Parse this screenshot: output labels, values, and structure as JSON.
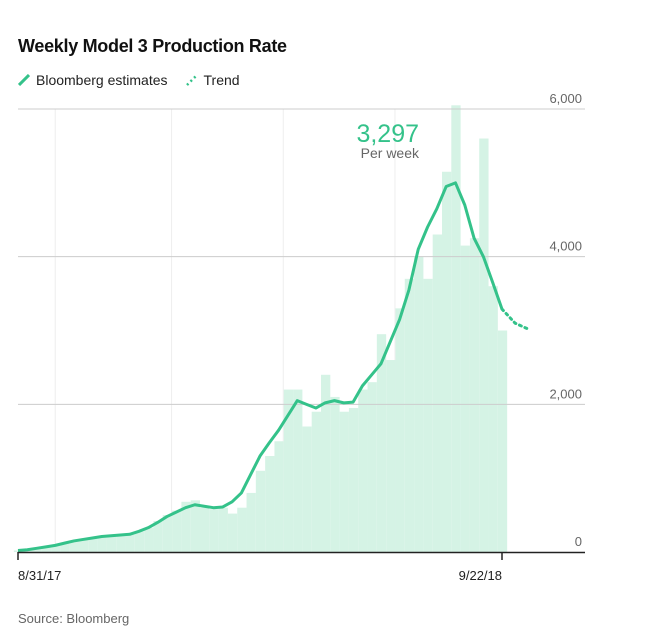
{
  "chart_data": {
    "type": "bar",
    "title": "Weekly Model 3 Production Rate",
    "legend": [
      {
        "label": "Bloomberg estimates",
        "style": "solid"
      },
      {
        "label": "Trend",
        "style": "dotted"
      }
    ],
    "xlabel": "",
    "ylabel": "",
    "ylim": [
      0,
      6000
    ],
    "yticks": [
      0,
      2000,
      4000,
      6000
    ],
    "ytick_labels": [
      "0",
      "2,000",
      "4,000",
      "6,000"
    ],
    "xtick_labels": [
      {
        "week": 0,
        "label": "8/31/17"
      },
      {
        "week": 52,
        "label": "9/22/18"
      }
    ],
    "x_range_weeks": [
      0,
      61
    ],
    "weekly_bars": [
      20,
      30,
      50,
      70,
      90,
      120,
      150,
      170,
      190,
      210,
      220,
      230,
      240,
      280,
      330,
      420,
      500,
      560,
      680,
      700,
      600,
      580,
      600,
      520,
      600,
      800,
      1100,
      1300,
      1500,
      2200,
      2200,
      1700,
      1900,
      2400,
      2100,
      1900,
      1950,
      2200,
      2300,
      2950,
      2600,
      3300,
      3700,
      4000,
      3700,
      4300,
      5150,
      6050,
      4150,
      4250,
      5600,
      3600,
      3000
    ],
    "series": [
      {
        "name": "Bloomberg estimates",
        "type": "line",
        "values": [
          20,
          30,
          50,
          70,
          90,
          120,
          150,
          170,
          190,
          210,
          220,
          230,
          240,
          280,
          330,
          400,
          480,
          540,
          600,
          640,
          620,
          600,
          610,
          680,
          800,
          1050,
          1300,
          1480,
          1650,
          1850,
          2050,
          2000,
          1950,
          2020,
          2050,
          2020,
          2030,
          2250,
          2400,
          2550,
          2850,
          3150,
          3550,
          4100,
          4400,
          4650,
          4950,
          5000,
          4700,
          4250,
          4000,
          3650,
          3290
        ]
      },
      {
        "name": "Trend",
        "type": "line",
        "start_week": 52,
        "values": [
          3290,
          3100,
          3020
        ]
      }
    ],
    "annotation": {
      "value": "3,297",
      "label": "Per week"
    },
    "grid": true,
    "source": "Source: Bloomberg",
    "colors": {
      "line": "#34c28a",
      "bar": "#d5f3e5",
      "grid": "#cccccc",
      "vgrid": "#eeeeee",
      "axis": "#222222"
    }
  }
}
